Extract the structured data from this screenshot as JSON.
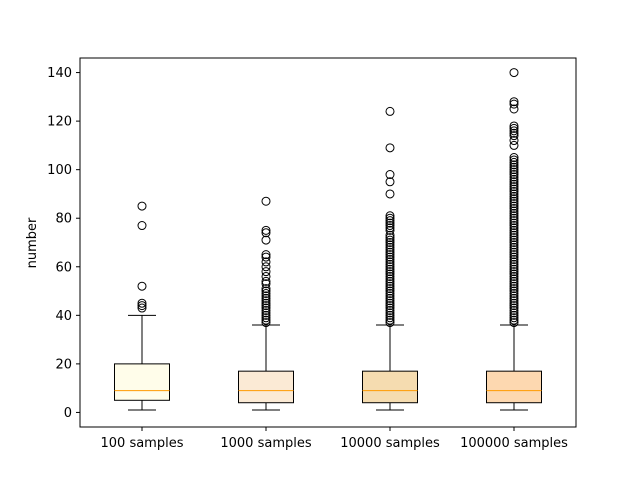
{
  "chart_data": {
    "type": "boxplot",
    "title": "",
    "xlabel": "",
    "ylabel": "number",
    "ylim": [
      -6,
      146
    ],
    "yticks": [
      0,
      20,
      40,
      60,
      80,
      100,
      120,
      140
    ],
    "ytick_labels": [
      "0",
      "20",
      "40",
      "60",
      "80",
      "100",
      "120",
      "140"
    ],
    "categories": [
      "100 samples",
      "1000 samples",
      "10000 samples",
      "100000 samples"
    ],
    "grid": false,
    "colors": {
      "box_fills": [
        "#fffdea",
        "#fbead5",
        "#f5dcb0",
        "#fdd8b0"
      ],
      "median": "#ff9a00",
      "lines": "#000000"
    },
    "boxes": [
      {
        "label": "100 samples",
        "whisker_low": 1,
        "q1": 5,
        "median": 9,
        "q3": 20,
        "whisker_high": 40,
        "outliers": [
          43,
          44,
          45,
          52,
          77,
          85
        ]
      },
      {
        "label": "1000 samples",
        "whisker_low": 1,
        "q1": 4,
        "median": 9,
        "q3": 17,
        "whisker_high": 36,
        "outliers": [
          37,
          38,
          39,
          40,
          41,
          42,
          43,
          44,
          45,
          46,
          47,
          48,
          49,
          50,
          51,
          53,
          54,
          56,
          58,
          60,
          62,
          64,
          65,
          71,
          74,
          75,
          87
        ]
      },
      {
        "label": "10000 samples",
        "whisker_low": 1,
        "q1": 4,
        "median": 9,
        "q3": 17,
        "whisker_high": 36,
        "outliers": [
          37,
          38,
          39,
          40,
          41,
          42,
          43,
          44,
          45,
          46,
          47,
          48,
          49,
          50,
          51,
          52,
          53,
          54,
          55,
          56,
          57,
          58,
          59,
          60,
          61,
          62,
          63,
          64,
          65,
          66,
          67,
          68,
          69,
          70,
          71,
          72,
          73,
          75,
          76,
          77,
          78,
          79,
          80,
          81,
          90,
          95,
          98,
          109,
          124
        ]
      },
      {
        "label": "100000 samples",
        "whisker_low": 1,
        "q1": 4,
        "median": 9,
        "q3": 17,
        "whisker_high": 36,
        "outliers": [
          37,
          38,
          39,
          40,
          41,
          42,
          43,
          44,
          45,
          46,
          47,
          48,
          49,
          50,
          51,
          52,
          53,
          54,
          55,
          56,
          57,
          58,
          59,
          60,
          61,
          62,
          63,
          64,
          65,
          66,
          67,
          68,
          69,
          70,
          71,
          72,
          73,
          74,
          75,
          76,
          77,
          78,
          79,
          80,
          81,
          82,
          83,
          84,
          85,
          86,
          87,
          88,
          89,
          90,
          91,
          92,
          93,
          94,
          95,
          96,
          97,
          98,
          99,
          100,
          101,
          102,
          103,
          104,
          105,
          110,
          112,
          114,
          115,
          116,
          117,
          118,
          125,
          127,
          128,
          140
        ]
      }
    ]
  }
}
